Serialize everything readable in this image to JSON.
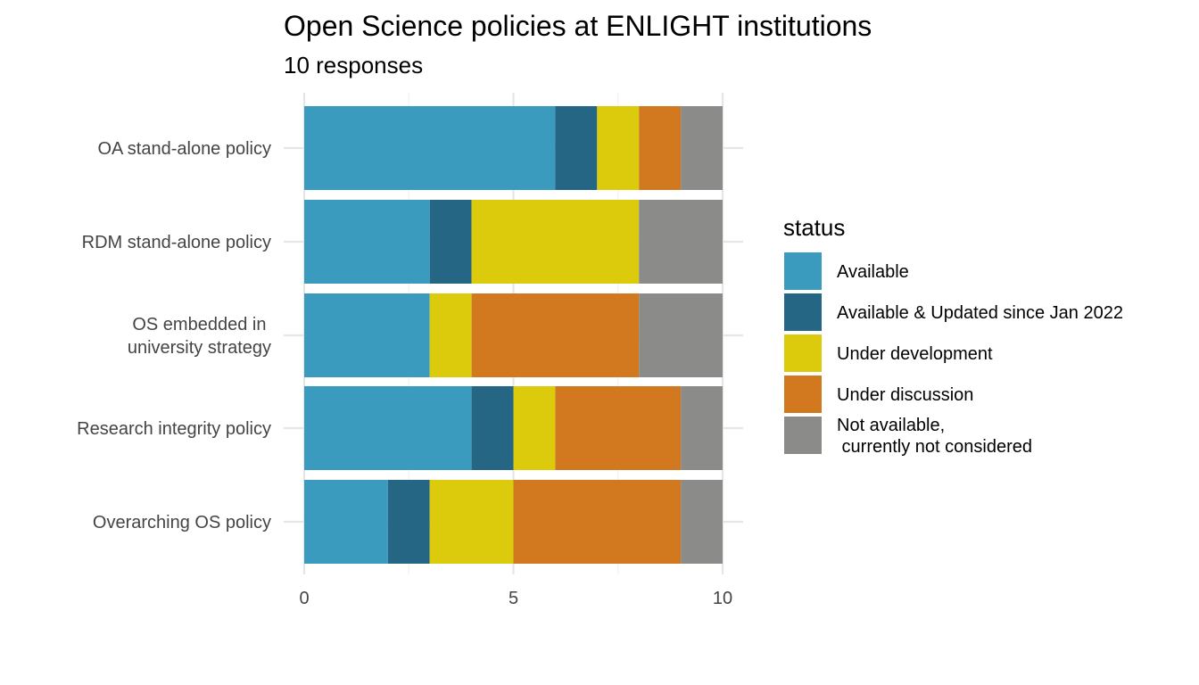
{
  "chart_data": {
    "type": "bar",
    "orientation": "horizontal",
    "stacked": true,
    "title": "Open Science policies at ENLIGHT institutions",
    "subtitle": "10 responses",
    "xlabel": "",
    "ylabel": "",
    "xlim": [
      0,
      10
    ],
    "x_ticks": [
      "0",
      "5",
      "10"
    ],
    "grid": true,
    "legend_placement": "right",
    "legend_title": "status",
    "categories": [
      [
        "OA stand-alone policy"
      ],
      [
        "RDM stand-alone policy"
      ],
      [
        "OS embedded in ",
        "university strategy"
      ],
      [
        "Research integrity policy"
      ],
      [
        "Overarching OS policy"
      ]
    ],
    "series": [
      {
        "name": [
          "Available"
        ],
        "color": "#3A9BBF",
        "values": [
          6,
          3,
          3,
          4,
          2
        ]
      },
      {
        "name": [
          "Available & Updated since Jan 2022"
        ],
        "color": "#246683",
        "values": [
          1,
          1,
          0,
          1,
          1
        ]
      },
      {
        "name": [
          "Under development"
        ],
        "color": "#DCCB0C",
        "values": [
          1,
          4,
          1,
          1,
          2
        ]
      },
      {
        "name": [
          "Under discussion"
        ],
        "color": "#D2791F",
        "values": [
          1,
          0,
          4,
          3,
          4
        ]
      },
      {
        "name": [
          "Not available,",
          " currently not considered"
        ],
        "color": "#8B8B89",
        "values": [
          1,
          2,
          2,
          1,
          1
        ]
      }
    ]
  }
}
